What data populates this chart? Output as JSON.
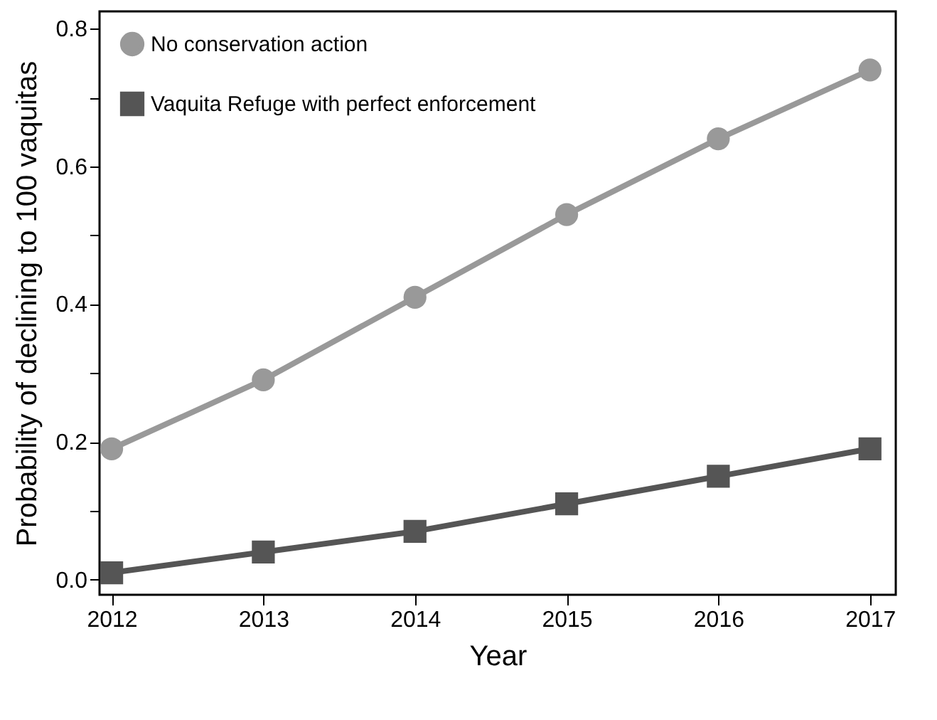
{
  "chart_data": {
    "type": "line",
    "xlabel": "Year",
    "ylabel": "Probability of declining to 100 vaquitas",
    "x": [
      2012,
      2013,
      2014,
      2015,
      2016,
      2017
    ],
    "series": [
      {
        "name": "No conservation action",
        "color": "#999999",
        "marker": "circle",
        "values": [
          0.19,
          0.29,
          0.41,
          0.53,
          0.64,
          0.74
        ]
      },
      {
        "name": "Vaquita Refuge with perfect enforcement",
        "color": "#555555",
        "marker": "square",
        "values": [
          0.01,
          0.04,
          0.07,
          0.11,
          0.15,
          0.19
        ]
      }
    ],
    "xlim": [
      2011.92,
      2017.17
    ],
    "xticks": [
      2012,
      2013,
      2014,
      2015,
      2016,
      2017
    ],
    "ylim": [
      -0.022,
      0.825
    ],
    "yticks": [
      {
        "value": 0,
        "label": "0.0"
      },
      {
        "value": 0.1,
        "label": null
      },
      {
        "value": 0.2,
        "label": "0.2"
      },
      {
        "value": 0.3,
        "label": null
      },
      {
        "value": 0.4,
        "label": "0.4"
      },
      {
        "value": 0.5,
        "label": null
      },
      {
        "value": 0.6,
        "label": "0.6"
      },
      {
        "value": 0.7,
        "label": null
      },
      {
        "value": 0.8,
        "label": "0.8"
      }
    ],
    "grid": false,
    "legend": "top left",
    "line_style": "solid"
  }
}
